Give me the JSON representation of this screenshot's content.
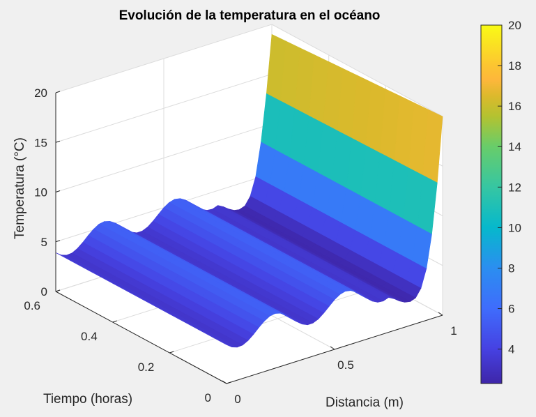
{
  "chart_data": {
    "type": "surface",
    "title": "Evolución de la temperatura en el océano",
    "xlabel": "Distancia (m)",
    "ylabel": "Tiempo (horas)",
    "zlabel": "Temperatura (°C)",
    "xlim": [
      0,
      1
    ],
    "ylim": [
      0,
      0.6
    ],
    "zlim": [
      0,
      20
    ],
    "xticks": [
      "0",
      "0.5",
      "1"
    ],
    "yticks": [
      "0",
      "0.2",
      "0.4",
      "0.6"
    ],
    "zticks": [
      "0",
      "5",
      "10",
      "15",
      "20"
    ],
    "grid": true,
    "x": [
      0,
      0.025,
      0.05,
      0.075,
      0.1,
      0.125,
      0.15,
      0.175,
      0.2,
      0.225,
      0.25,
      0.275,
      0.3,
      0.325,
      0.35,
      0.375,
      0.4,
      0.425,
      0.45,
      0.475,
      0.5,
      0.525,
      0.55,
      0.575,
      0.6,
      0.625,
      0.65,
      0.675,
      0.7,
      0.725,
      0.75,
      0.775,
      0.8,
      0.825,
      0.85,
      0.875,
      0.9,
      0.925,
      0.95,
      0.975,
      1
    ],
    "t": [
      0,
      0.05,
      0.1,
      0.15,
      0.2,
      0.25,
      0.3,
      0.35,
      0.4,
      0.45,
      0.5,
      0.55,
      0.6
    ],
    "z_profile_t0": [
      3.9,
      3.5,
      3.31,
      3.36,
      3.64,
      4.09,
      4.61,
      5.08,
      5.4,
      5.5,
      5.35,
      5.0,
      4.5,
      3.99,
      3.57,
      3.33,
      3.33,
      3.57,
      3.99,
      4.5,
      5.0,
      5.35,
      5.5,
      5.4,
      5.08,
      4.61,
      4.09,
      3.64,
      3.36,
      3.31,
      3.5,
      3.2,
      2.8,
      2.5,
      2.4,
      2.6,
      3.4,
      5.2,
      8.5,
      13.5,
      20.0
    ],
    "z_profile_t06": [
      3.9,
      3.5,
      3.31,
      3.36,
      3.64,
      4.09,
      4.61,
      5.08,
      5.4,
      5.5,
      5.35,
      5.0,
      4.5,
      3.99,
      3.57,
      3.33,
      3.33,
      3.57,
      3.99,
      4.5,
      5.0,
      5.35,
      5.5,
      5.4,
      5.08,
      4.61,
      4.09,
      3.64,
      3.36,
      3.31,
      3.5,
      3.2,
      2.8,
      2.5,
      2.4,
      2.6,
      3.4,
      5.2,
      8.5,
      13.2,
      19.0
    ],
    "colorbar": {
      "limits": [
        2.3,
        20
      ],
      "ticks": [
        "4",
        "6",
        "8",
        "10",
        "12",
        "14",
        "16",
        "18",
        "20"
      ],
      "colormap": "parula",
      "stops": [
        [
          2.3,
          "#3e26a8"
        ],
        [
          4,
          "#4641e2"
        ],
        [
          6,
          "#3f6cfc"
        ],
        [
          8,
          "#2b8ef0"
        ],
        [
          10,
          "#06b8cc"
        ],
        [
          12,
          "#36c6a2"
        ],
        [
          14,
          "#68cd6a"
        ],
        [
          15.5,
          "#b4c230"
        ],
        [
          16.5,
          "#dcb92c"
        ],
        [
          17.3,
          "#fdb73b"
        ],
        [
          18,
          "#fcc531"
        ],
        [
          20,
          "#f9fb15"
        ]
      ]
    }
  }
}
